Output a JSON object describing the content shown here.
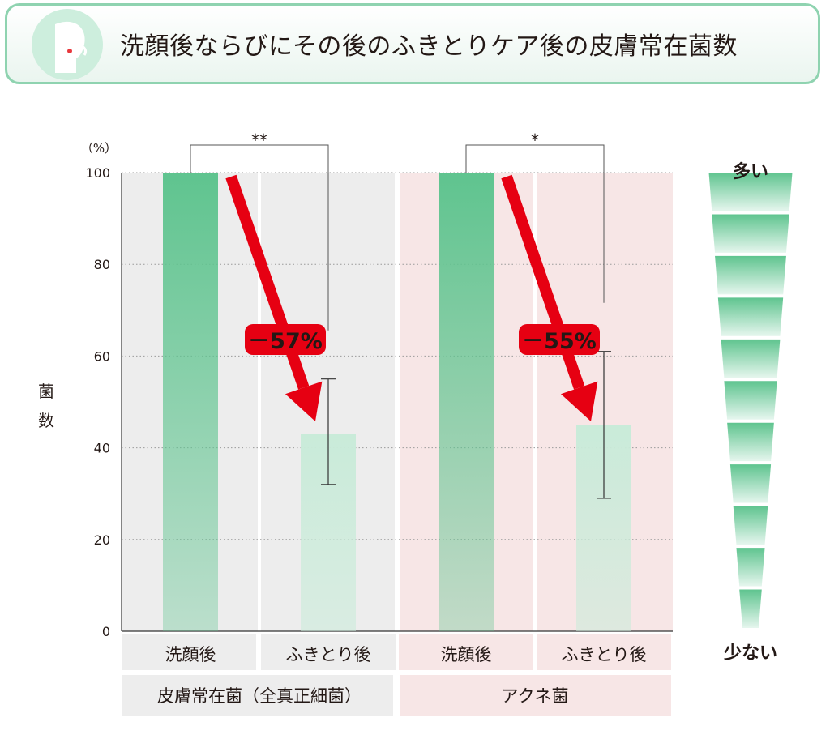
{
  "title": "洗顔後ならびにその後のふきとりケア後の皮膚常在菌数",
  "icon": "face-wiping-icon",
  "colors": {
    "bar_dark": "#5fc48f",
    "bar_light": "#c9ebd9",
    "bg_group1": "#ededed",
    "bg_group2": "#f7e6e6",
    "arrow": "#e60012",
    "accent_border": "#8fd3b0"
  },
  "chart_data": {
    "type": "bar",
    "yunit": "（%）",
    "ylabel": "菌数",
    "ylim": [
      0,
      100
    ],
    "yticks": [
      0,
      20,
      40,
      60,
      80,
      100
    ],
    "grid": true,
    "categories": [
      "洗顔後",
      "ふきとり後",
      "洗顔後",
      "ふきとり後"
    ],
    "groups": [
      {
        "name": "皮膚常在菌（全真正細菌）",
        "bars": [
          {
            "label": "洗顔後",
            "value": 100
          },
          {
            "label": "ふきとり後",
            "value": 43,
            "error_low": 32,
            "error_high": 55
          }
        ],
        "significance": "**",
        "change": "－57%"
      },
      {
        "name": "アクネ菌",
        "bars": [
          {
            "label": "洗顔後",
            "value": 100
          },
          {
            "label": "ふきとり後",
            "value": 45,
            "error_low": 29,
            "error_high": 61
          }
        ],
        "significance": "*",
        "change": "－55%"
      }
    ],
    "scale": {
      "top": "多い",
      "bottom": "少ない",
      "steps": 11
    }
  }
}
